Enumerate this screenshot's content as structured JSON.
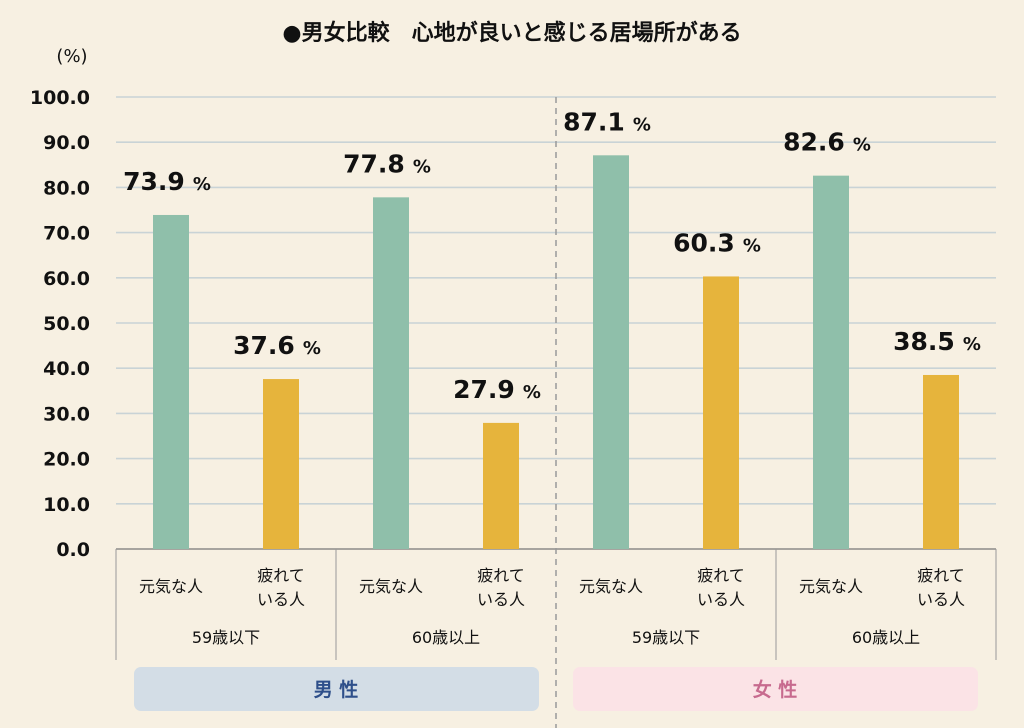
{
  "colors": {
    "background": "#f7f0e2",
    "genki": "#8fbfaa",
    "tired": "#e6b43c",
    "grid": "#c9d3d6",
    "male_band": "#d3dde6",
    "female_band": "#fbe3e6"
  },
  "chart_data": {
    "type": "bar",
    "title": "●男女比較　心地が良いと感じる居場所がある",
    "ylabel": "(%)",
    "ylim": [
      0,
      100
    ],
    "yticks": [
      "0.0",
      "10.0",
      "20.0",
      "30.0",
      "40.0",
      "50.0",
      "60.0",
      "70.0",
      "80.0",
      "90.0",
      "100.0"
    ],
    "grid": true,
    "value_suffix": "%",
    "genders": [
      {
        "label": "男 性",
        "groups": [
          {
            "label": "59歳以下",
            "bars": [
              {
                "category": "元気な人",
                "value": 73.9,
                "value_label": "73.9"
              },
              {
                "category": "疲れている人",
                "value": 37.6,
                "value_label": "37.6"
              }
            ]
          },
          {
            "label": "60歳以上",
            "bars": [
              {
                "category": "元気な人",
                "value": 77.8,
                "value_label": "77.8"
              },
              {
                "category": "疲れている人",
                "value": 27.9,
                "value_label": "27.9"
              }
            ]
          }
        ]
      },
      {
        "label": "女 性",
        "groups": [
          {
            "label": "59歳以下",
            "bars": [
              {
                "category": "元気な人",
                "value": 87.1,
                "value_label": "87.1"
              },
              {
                "category": "疲れている人",
                "value": 60.3,
                "value_label": "60.3"
              }
            ]
          },
          {
            "label": "60歳以上",
            "bars": [
              {
                "category": "元気な人",
                "value": 82.6,
                "value_label": "82.6"
              },
              {
                "category": "疲れている人",
                "value": 38.5,
                "value_label": "38.5"
              }
            ]
          }
        ]
      }
    ]
  }
}
